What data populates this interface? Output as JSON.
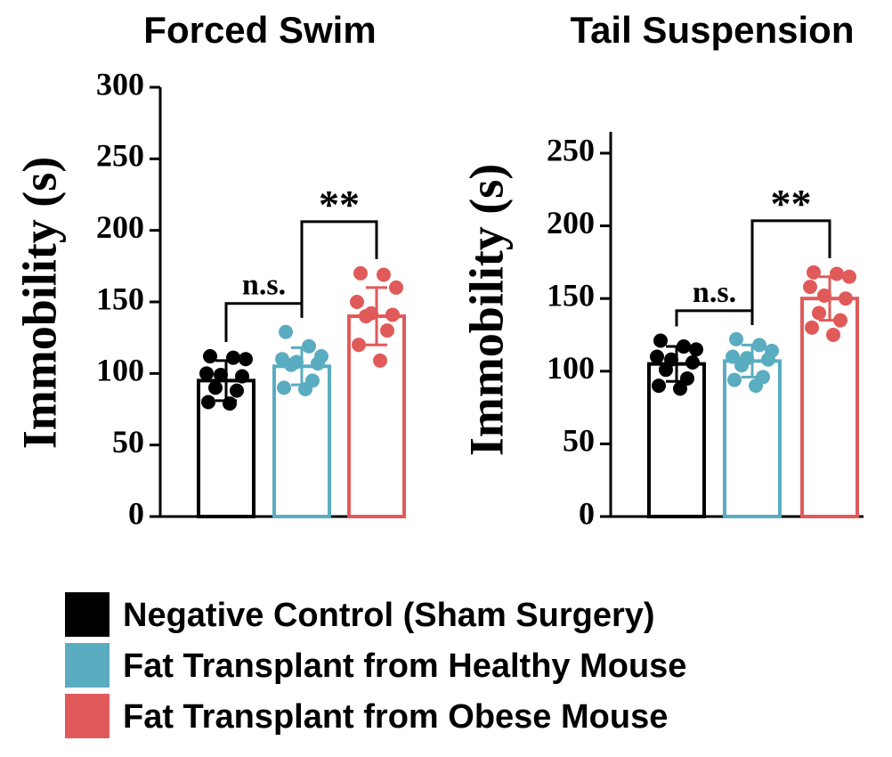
{
  "chart_data": [
    {
      "type": "bar",
      "title": "Forced Swim",
      "ylabel": "Immobility (s)",
      "xlabel": "",
      "ylim": [
        0,
        300
      ],
      "yticks": [
        0,
        50,
        100,
        150,
        200,
        250,
        300
      ],
      "series": [
        {
          "name": "Negative Control (Sham Surgery)",
          "color": "#000000",
          "mean": 95,
          "error": 14,
          "points": [
            112,
            111,
            110,
            100,
            99,
            98,
            90,
            88,
            80,
            79
          ]
        },
        {
          "name": "Fat Transplant from Healthy Mouse",
          "color": "#5aacc0",
          "mean": 105,
          "error": 13,
          "points": [
            129,
            119,
            112,
            110,
            108,
            107,
            106,
            95,
            90,
            89
          ]
        },
        {
          "name": "Fat Transplant from Obese Mouse",
          "color": "#e05a5a",
          "mean": 140,
          "error": 20,
          "points": [
            170,
            169,
            160,
            150,
            142,
            141,
            140,
            130,
            120,
            109
          ]
        }
      ],
      "significance": [
        {
          "from": 0,
          "to": 1,
          "label": "n.s."
        },
        {
          "from": 1,
          "to": 2,
          "label": "**"
        }
      ]
    },
    {
      "type": "bar",
      "title": "Tail Suspension",
      "ylabel": "Immobility (s)",
      "xlabel": "",
      "ylim": [
        0,
        260
      ],
      "yticks": [
        0,
        50,
        100,
        150,
        200,
        250
      ],
      "series": [
        {
          "name": "Negative Control (Sham Surgery)",
          "color": "#000000",
          "mean": 105,
          "error": 12,
          "points": [
            121,
            117,
            115,
            110,
            108,
            106,
            101,
            95,
            90,
            88
          ]
        },
        {
          "name": "Fat Transplant from Healthy Mouse",
          "color": "#5aacc0",
          "mean": 107,
          "error": 11,
          "points": [
            122,
            118,
            114,
            110,
            109,
            108,
            104,
            96,
            94,
            90
          ]
        },
        {
          "name": "Fat Transplant from Obese Mouse",
          "color": "#e05a5a",
          "mean": 150,
          "error": 15,
          "points": [
            168,
            167,
            165,
            158,
            152,
            150,
            140,
            135,
            130,
            125
          ]
        }
      ],
      "significance": [
        {
          "from": 0,
          "to": 1,
          "label": "n.s."
        },
        {
          "from": 1,
          "to": 2,
          "label": "**"
        }
      ]
    }
  ],
  "legend": [
    {
      "label": "Negative Control (Sham Surgery)",
      "color": "#000000"
    },
    {
      "label": "Fat Transplant from Healthy Mouse",
      "color": "#5aacc0"
    },
    {
      "label": "Fat Transplant from Obese Mouse",
      "color": "#e05a5a"
    }
  ]
}
